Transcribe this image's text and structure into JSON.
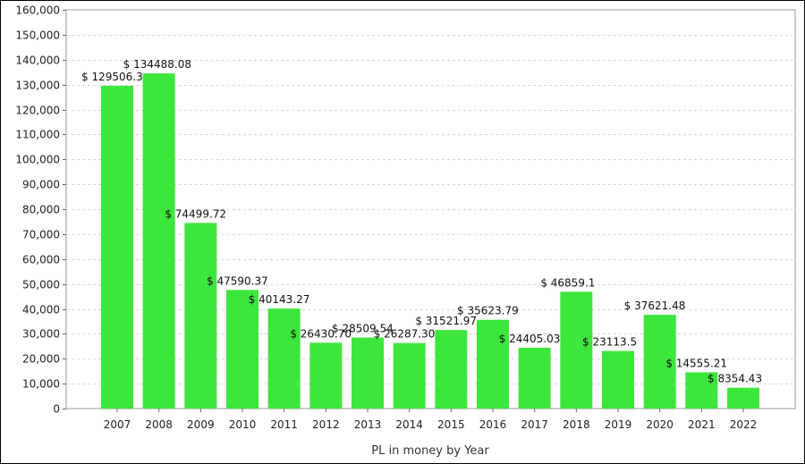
{
  "chart_data": {
    "type": "bar",
    "title": "",
    "xlabel": "PL in money by Year",
    "ylabel": "",
    "ylim": [
      0,
      160000
    ],
    "ytick_step": 10000,
    "grid": true,
    "bar_color": "#3de63d",
    "value_prefix": "$ ",
    "categories": [
      "2007",
      "2008",
      "2009",
      "2010",
      "2011",
      "2012",
      "2013",
      "2014",
      "2015",
      "2016",
      "2017",
      "2018",
      "2019",
      "2020",
      "2021",
      "2022"
    ],
    "values": [
      129506.3,
      134488.08,
      74499.72,
      47590.37,
      40143.27,
      26430.7,
      28509.54,
      26287.3,
      31521.97,
      35623.79,
      24405.03,
      46859.1,
      23113.5,
      37621.48,
      14555.21,
      8354.43
    ],
    "value_labels": [
      "$ 129506.3",
      "$ 134488.08",
      "$ 74499.72",
      "$ 47590.37",
      "$ 40143.27",
      "$ 26430.70",
      "$ 28509.54",
      "$ 26287.30",
      "$ 31521.97",
      "$ 35623.79",
      "$ 24405.03",
      "$ 46859.1",
      "$ 23113.5",
      "$ 37621.48",
      "$ 14555.21",
      "$ 8354.43"
    ]
  }
}
